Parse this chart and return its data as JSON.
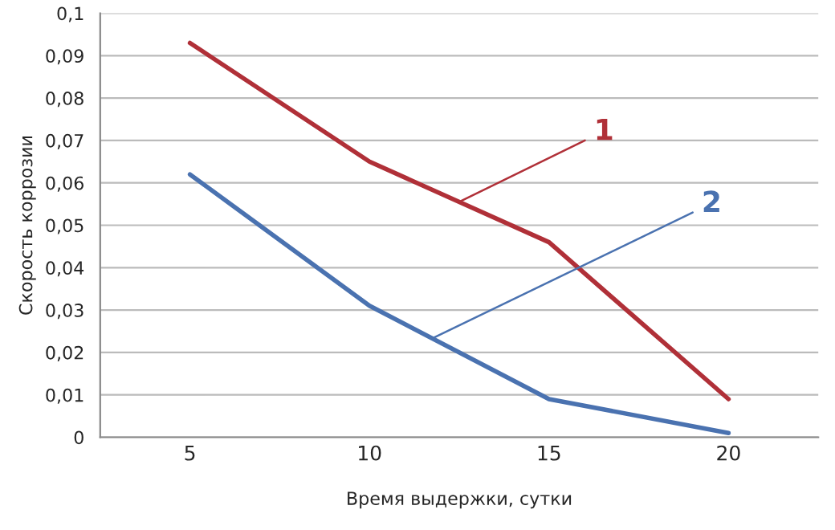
{
  "chart_data": {
    "type": "line",
    "xlabel": "Время выдержки, сутки",
    "ylabel": "Скорость коррозии",
    "categories": [
      "5",
      "10",
      "15",
      "20"
    ],
    "series": [
      {
        "name": "1",
        "color": "#b03038",
        "values": [
          0.093,
          0.065,
          0.046,
          0.009
        ]
      },
      {
        "name": "2",
        "color": "#4a72b0",
        "values": [
          0.062,
          0.031,
          0.009,
          0.001
        ]
      }
    ],
    "ylim": [
      0,
      0.1
    ],
    "yticks": [
      {
        "value": 0,
        "label": "0"
      },
      {
        "value": 0.01,
        "label": "0,01"
      },
      {
        "value": 0.02,
        "label": "0,02"
      },
      {
        "value": 0.03,
        "label": "0,03"
      },
      {
        "value": 0.04,
        "label": "0,04"
      },
      {
        "value": 0.05,
        "label": "0,05"
      },
      {
        "value": 0.06,
        "label": "0,06"
      },
      {
        "value": 0.07,
        "label": "0,07"
      },
      {
        "value": 0.08,
        "label": "0,08"
      },
      {
        "value": 0.09,
        "label": "0,09"
      },
      {
        "value": 0.1,
        "label": "0,1"
      }
    ],
    "grid": "y",
    "marker": "none",
    "line_style": "solid"
  }
}
